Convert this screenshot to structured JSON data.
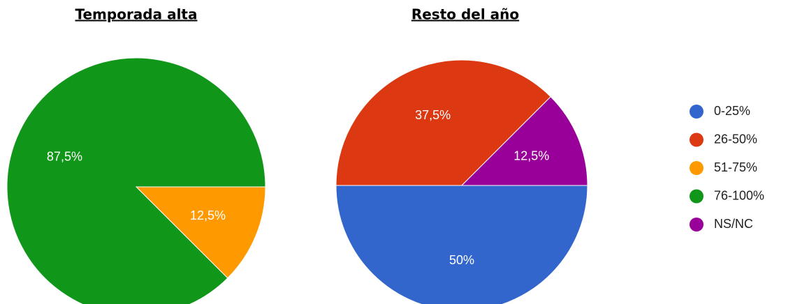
{
  "chart_data": [
    {
      "type": "pie",
      "title": "Temporada alta",
      "categories": [
        "0-25%",
        "26-50%",
        "51-75%",
        "76-100%",
        "NS/NC"
      ],
      "values": [
        0,
        0,
        12.5,
        87.5,
        0
      ],
      "value_labels": [
        null,
        null,
        "12,5%",
        "87,5%",
        null
      ],
      "colors": [
        "#3366cc",
        "#dc3912",
        "#ff9900",
        "#109618",
        "#990099"
      ]
    },
    {
      "type": "pie",
      "title": "Resto del año",
      "categories": [
        "0-25%",
        "26-50%",
        "51-75%",
        "76-100%",
        "NS/NC"
      ],
      "values": [
        50,
        37.5,
        0,
        0,
        12.5
      ],
      "value_labels": [
        "50%",
        "37,5%",
        null,
        null,
        "12,5%"
      ],
      "colors": [
        "#3366cc",
        "#dc3912",
        "#ff9900",
        "#109618",
        "#990099"
      ]
    }
  ]
}
